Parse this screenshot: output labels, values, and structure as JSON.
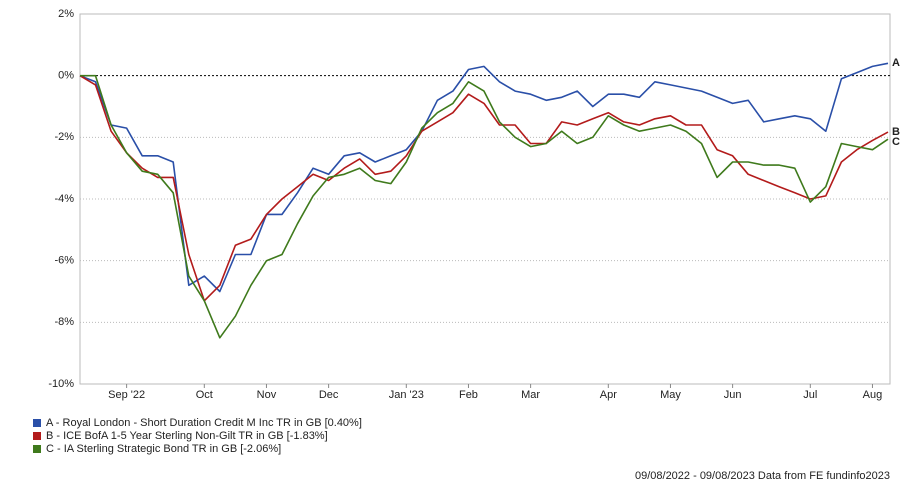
{
  "chart_data": {
    "type": "line",
    "categories": [
      null,
      null,
      null,
      "Sep '22",
      null,
      null,
      null,
      null,
      "Oct",
      null,
      null,
      null,
      "Nov",
      null,
      null,
      null,
      "Dec",
      null,
      null,
      null,
      null,
      "Jan '23",
      null,
      null,
      null,
      "Feb",
      null,
      null,
      null,
      "Mar",
      null,
      null,
      null,
      null,
      "Apr",
      null,
      null,
      null,
      "May",
      null,
      null,
      null,
      "Jun",
      null,
      null,
      null,
      null,
      "Jul",
      null,
      null,
      null,
      "Aug",
      null
    ],
    "series": [
      {
        "name": "A - Royal London - Short Duration Credit M Inc TR in GB [0.40%]",
        "end_label": "A",
        "color": "#2a4fa8",
        "values": [
          0,
          -0.2,
          -1.6,
          -1.7,
          -2.6,
          -2.6,
          -2.8,
          -6.8,
          -6.5,
          -7.0,
          -5.8,
          -5.8,
          -4.5,
          -4.5,
          -3.8,
          -3.0,
          -3.2,
          -2.6,
          -2.5,
          -2.8,
          -2.6,
          -2.4,
          -1.8,
          -0.8,
          -0.5,
          0.2,
          0.3,
          -0.2,
          -0.5,
          -0.6,
          -0.8,
          -0.7,
          -0.5,
          -1.0,
          -0.6,
          -0.6,
          -0.7,
          -0.2,
          -0.3,
          -0.4,
          -0.5,
          -0.7,
          -0.9,
          -0.8,
          -1.5,
          -1.4,
          -1.3,
          -1.4,
          -1.8,
          -0.1,
          0.1,
          0.3,
          0.4
        ]
      },
      {
        "name": "B - ICE BofA 1-5 Year Sterling Non-Gilt TR in GB [-1.83%]",
        "end_label": "B",
        "color": "#b31b1b",
        "values": [
          0,
          -0.3,
          -1.8,
          -2.5,
          -3.0,
          -3.3,
          -3.3,
          -5.8,
          -7.3,
          -6.8,
          -5.5,
          -5.3,
          -4.5,
          -4.0,
          -3.6,
          -3.2,
          -3.4,
          -3.0,
          -2.7,
          -3.2,
          -3.1,
          -2.6,
          -1.8,
          -1.5,
          -1.2,
          -0.6,
          -0.9,
          -1.6,
          -1.6,
          -2.2,
          -2.2,
          -1.5,
          -1.6,
          -1.4,
          -1.2,
          -1.5,
          -1.6,
          -1.4,
          -1.3,
          -1.6,
          -1.6,
          -2.4,
          -2.6,
          -3.2,
          -3.4,
          -3.6,
          -3.8,
          -4.0,
          -3.9,
          -2.8,
          -2.4,
          -2.1,
          -1.83
        ]
      },
      {
        "name": "C - IA Sterling Strategic Bond TR in GB [-2.06%]",
        "end_label": "C",
        "color": "#3f7a1c",
        "values": [
          0,
          0,
          -1.6,
          -2.5,
          -3.1,
          -3.2,
          -3.8,
          -6.5,
          -7.3,
          -8.5,
          -7.8,
          -6.8,
          -6.0,
          -5.8,
          -4.8,
          -3.9,
          -3.3,
          -3.2,
          -3.0,
          -3.4,
          -3.5,
          -2.8,
          -1.7,
          -1.2,
          -0.9,
          -0.2,
          -0.5,
          -1.5,
          -2.0,
          -2.3,
          -2.2,
          -1.8,
          -2.2,
          -2.0,
          -1.3,
          -1.6,
          -1.8,
          -1.7,
          -1.6,
          -1.8,
          -2.2,
          -3.3,
          -2.8,
          -2.8,
          -2.9,
          -2.9,
          -3.0,
          -4.1,
          -3.6,
          -2.2,
          -2.3,
          -2.4,
          -2.06
        ]
      }
    ],
    "ylim": [
      -10,
      2
    ],
    "yticks": [
      {
        "value": 2,
        "label": "2%"
      },
      {
        "value": 0,
        "label": "0%"
      },
      {
        "value": -2,
        "label": "-2%"
      },
      {
        "value": -4,
        "label": "-4%"
      },
      {
        "value": -6,
        "label": "-6%"
      },
      {
        "value": -8,
        "label": "-8%"
      },
      {
        "value": -10,
        "label": "-10%"
      }
    ],
    "grid": true,
    "footer": "09/08/2022 - 09/08/2023 Data from FE fundinfo2023"
  }
}
